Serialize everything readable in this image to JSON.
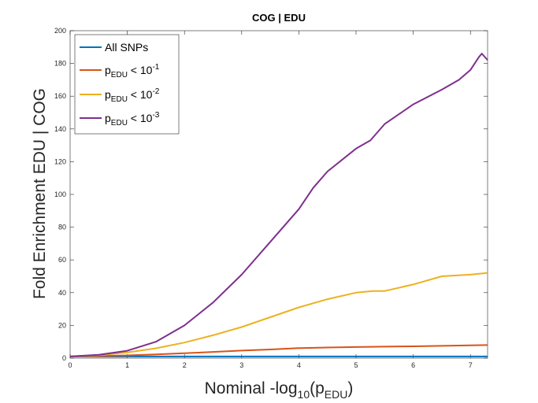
{
  "chart_data": {
    "type": "line",
    "title": "COG | EDU",
    "xlabel": {
      "main": "Nominal -log",
      "sub": "10",
      "paren_open": "(p",
      "p_sub": "EDU",
      "paren_close": ")"
    },
    "ylabel": "Fold Enrichment EDU | COG",
    "xlim": [
      0,
      7.3
    ],
    "ylim": [
      0,
      200
    ],
    "xticks": [
      "0",
      "1",
      "2",
      "3",
      "4",
      "5",
      "6",
      "7"
    ],
    "yticks": [
      "0",
      "20",
      "40",
      "60",
      "80",
      "100",
      "120",
      "140",
      "160",
      "180",
      "200"
    ],
    "legend_position": "top-left",
    "grid": false,
    "series": [
      {
        "name": "All SNPs",
        "color": "#0072BD",
        "x": [
          0,
          1,
          2,
          3,
          4,
          5,
          6,
          7,
          7.3
        ],
        "y": [
          1,
          1,
          1,
          1,
          1,
          1,
          1,
          1,
          1
        ]
      },
      {
        "name": "p_EDU < 10^-1",
        "color": "#D95319",
        "label": {
          "p": "p",
          "sub": "EDU",
          "rel": " < 10",
          "sup": "-1"
        },
        "x": [
          0,
          0.5,
          1,
          1.5,
          2,
          2.5,
          3,
          3.5,
          4,
          4.5,
          5,
          5.5,
          6,
          6.5,
          7,
          7.3
        ],
        "y": [
          1,
          1.3,
          1.7,
          2.3,
          3,
          3.8,
          4.6,
          5.3,
          6.1,
          6.5,
          6.8,
          7,
          7.2,
          7.5,
          7.8,
          8
        ]
      },
      {
        "name": "p_EDU < 10^-2",
        "color": "#EDB120",
        "label": {
          "p": "p",
          "sub": "EDU",
          "rel": " < 10",
          "sup": "-2"
        },
        "x": [
          0,
          0.5,
          1,
          1.5,
          2,
          2.5,
          3,
          3.5,
          4,
          4.5,
          5,
          5.3,
          5.5,
          6,
          6.5,
          7,
          7.3
        ],
        "y": [
          1,
          1.8,
          3.5,
          6,
          9.5,
          14,
          19,
          25,
          31,
          36,
          40,
          41,
          41,
          45,
          50,
          51,
          52
        ]
      },
      {
        "name": "p_EDU < 10^-3",
        "color": "#7E2F8E",
        "label": {
          "p": "p",
          "sub": "EDU",
          "rel": " < 10",
          "sup": "-3"
        },
        "x": [
          0,
          0.5,
          1,
          1.5,
          2,
          2.5,
          3,
          3.5,
          4,
          4.25,
          4.5,
          5,
          5.25,
          5.5,
          6,
          6.5,
          6.8,
          7,
          7.15,
          7.2,
          7.3
        ],
        "y": [
          1,
          2,
          4.5,
          10,
          20,
          34,
          51,
          71,
          91,
          104,
          114,
          128,
          133,
          143,
          155,
          164,
          170,
          176,
          184,
          186,
          182
        ]
      }
    ]
  }
}
